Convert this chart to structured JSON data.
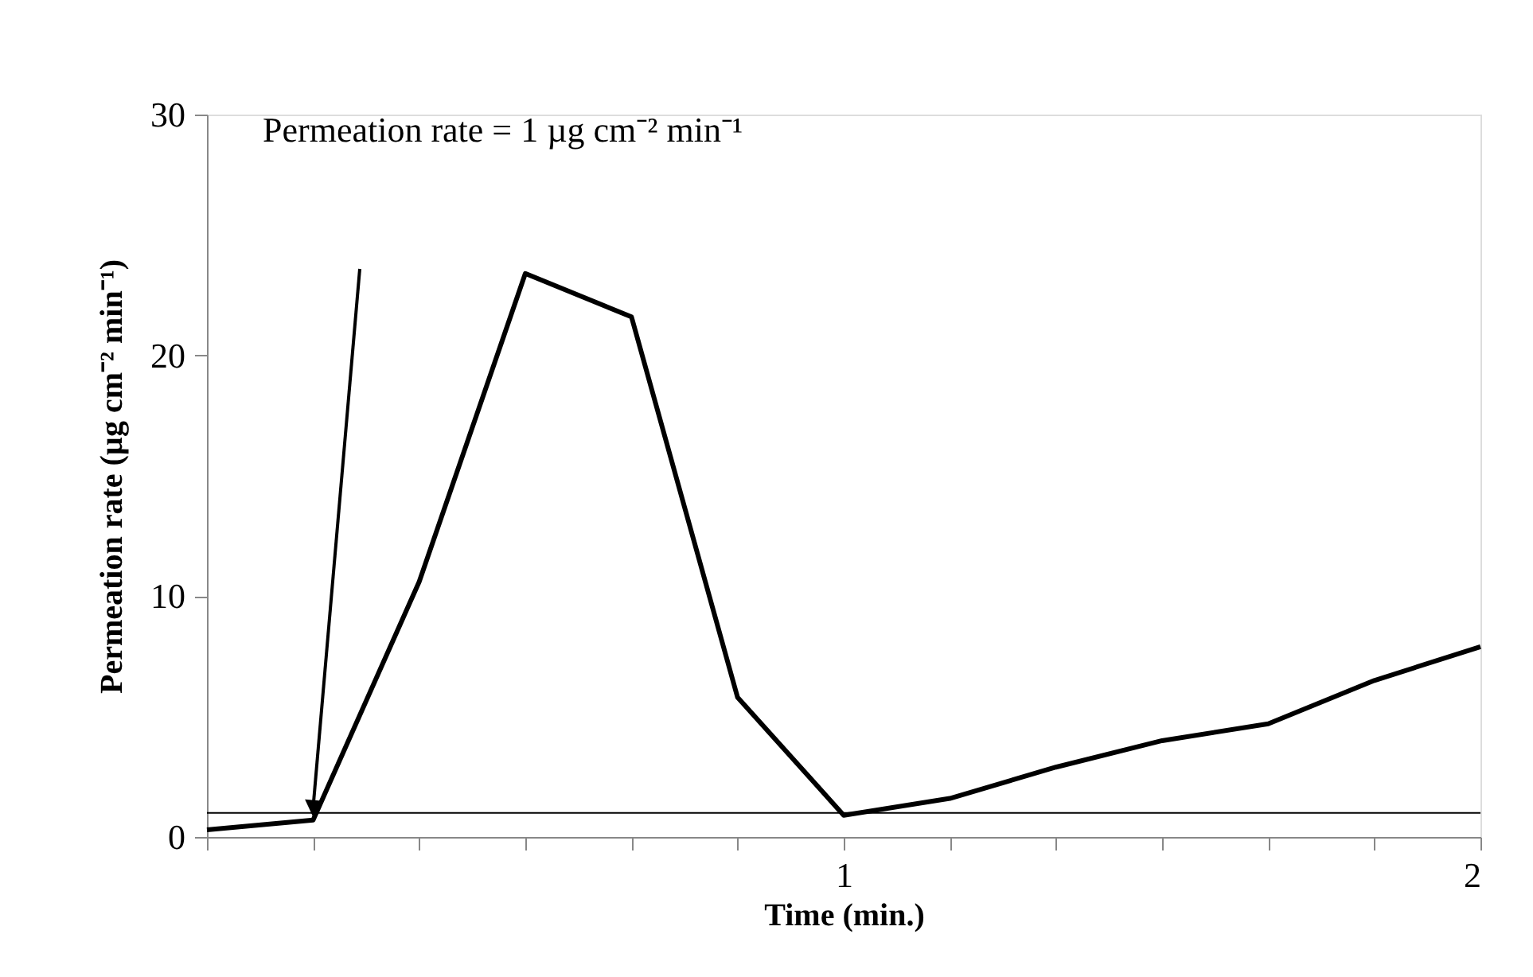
{
  "chart_data": {
    "type": "line",
    "xlabel": "Time (min.)",
    "ylabel": "Permeation rate (µg cm⁻² min⁻¹)",
    "x": [
      0,
      0.1667,
      0.3333,
      0.5,
      0.6667,
      0.8333,
      1,
      1.1667,
      1.3333,
      1.5,
      1.6667,
      1.8333,
      2
    ],
    "series": [
      {
        "color": "#000000",
        "values": [
          0.3,
          0.7,
          10.6,
          23.4,
          21.6,
          5.8,
          0.9,
          1.6,
          2.9,
          4.0,
          4.7,
          6.5,
          7.9
        ]
      }
    ],
    "xlim": [
      0,
      2
    ],
    "xticks": [
      {
        "value": 0,
        "label": null
      },
      {
        "value": 0.1667,
        "label": null
      },
      {
        "value": 0.3333,
        "label": null
      },
      {
        "value": 0.5,
        "label": null
      },
      {
        "value": 0.6667,
        "label": null
      },
      {
        "value": 0.8333,
        "label": null
      },
      1,
      {
        "value": 1.1667,
        "label": null
      },
      {
        "value": 1.3333,
        "label": null
      },
      {
        "value": 1.5,
        "label": null
      },
      {
        "value": 1.6667,
        "label": null
      },
      {
        "value": 1.8333,
        "label": null
      },
      2
    ],
    "ylim": [
      0,
      30
    ],
    "yticks": [
      0,
      10,
      20,
      30
    ],
    "ref_lines": [
      {
        "axis": "y",
        "value": 1,
        "color": "#000000",
        "line_style": "solid"
      }
    ],
    "annotations": [
      "Permeation rate = 1 µg cm⁻² min⁻¹"
    ],
    "grid": false,
    "marker": "none",
    "line_style": "solid"
  }
}
